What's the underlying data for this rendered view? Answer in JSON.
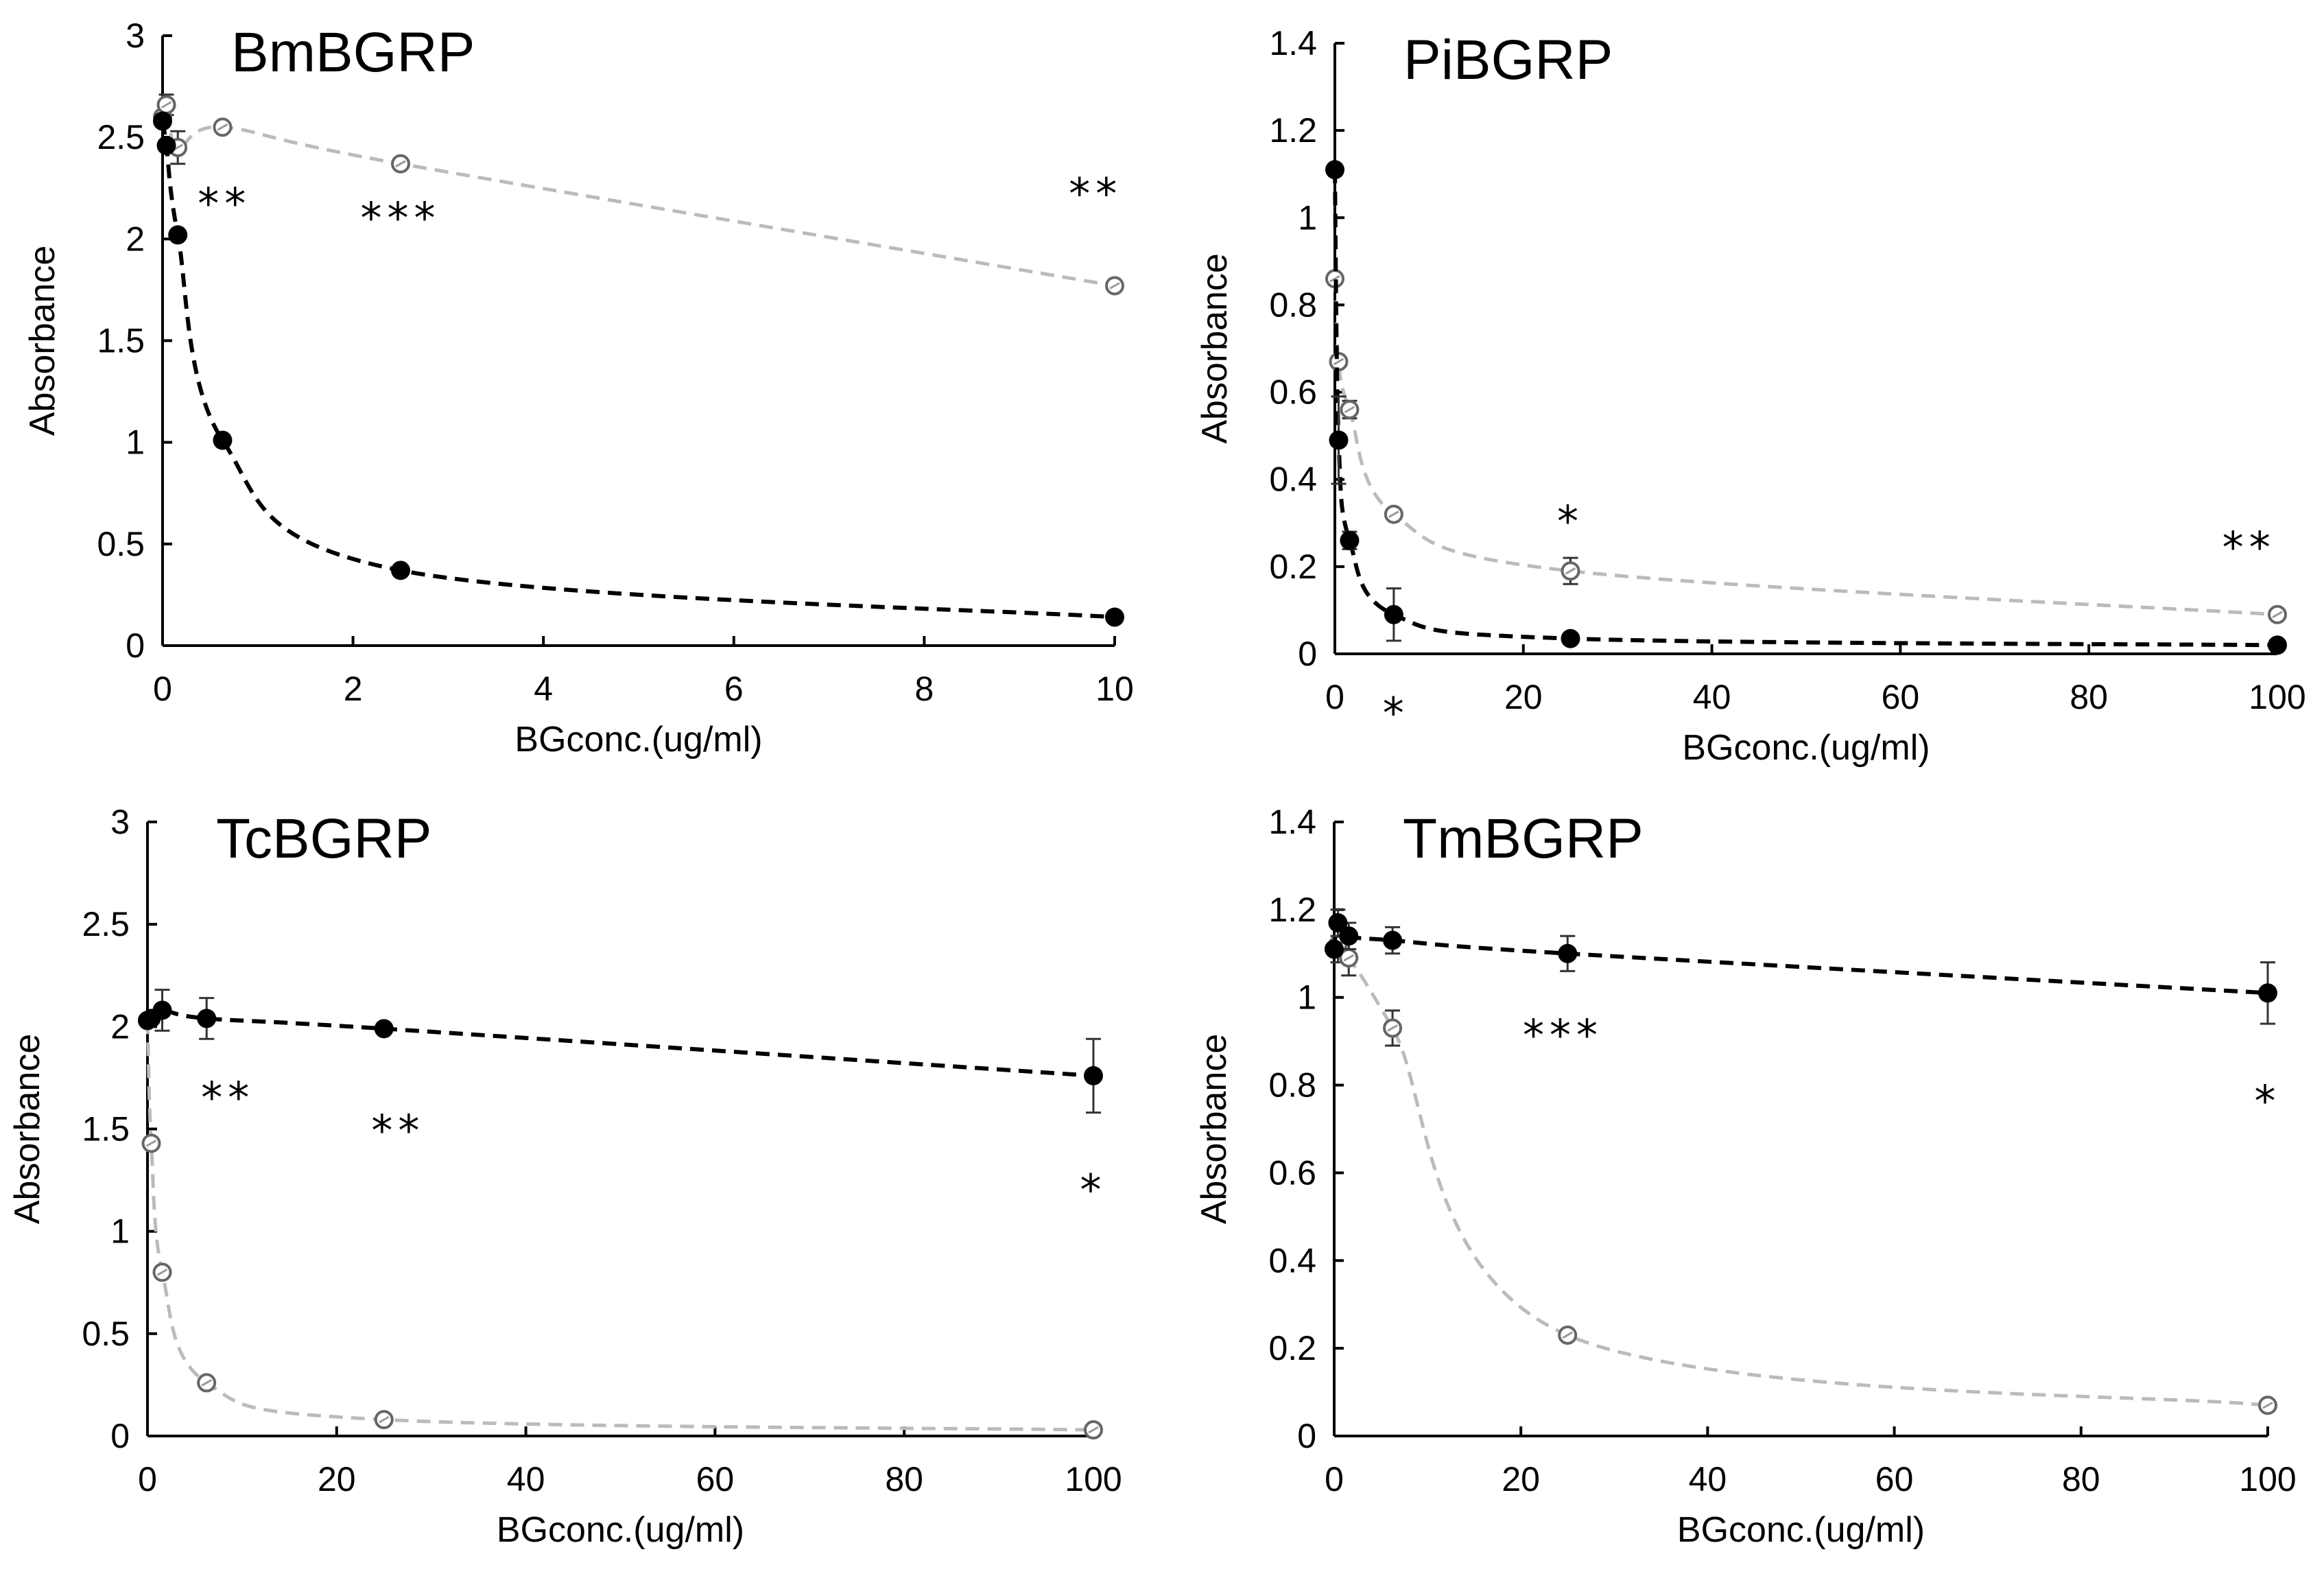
{
  "chart_data": [
    {
      "type": "scatter",
      "title": "BmBGRP",
      "xlabel": "BGconc.(ug/ml)",
      "ylabel": "Absorbance",
      "xlim": [
        0,
        10
      ],
      "ylim": [
        0,
        3
      ],
      "xticks": [
        0,
        2,
        4,
        6,
        8,
        10
      ],
      "yticks": [
        0,
        0.5,
        1,
        1.5,
        2,
        2.5,
        3
      ],
      "xtick_labels": [
        "0",
        "2",
        "4",
        "6",
        "8",
        "10"
      ],
      "ytick_labels": [
        "0",
        "0.5",
        "1",
        "1.5",
        "2",
        "2.5",
        "3"
      ],
      "grid": false,
      "legend": "none",
      "series": [
        {
          "marker": "open-circle",
          "line": "dashed",
          "color": "#bbbbbb",
          "x": [
            0,
            0.04,
            0.16,
            0.63,
            2.5,
            10
          ],
          "y": [
            2.6,
            2.66,
            2.45,
            2.55,
            2.37,
            1.77
          ],
          "err": [
            0,
            0.05,
            0.08,
            0,
            0,
            0
          ]
        },
        {
          "marker": "filled-circle",
          "line": "dashed",
          "color": "#000000",
          "x": [
            0,
            0.04,
            0.16,
            0.63,
            2.5,
            10
          ],
          "y": [
            2.58,
            2.46,
            2.02,
            1.01,
            0.37,
            0.14
          ],
          "err": [
            0,
            0,
            0,
            0,
            0,
            0
          ]
        }
      ],
      "annotations": [
        {
          "text": "**",
          "x": 0.65,
          "y": 2.1
        },
        {
          "text": "***",
          "x": 2.5,
          "y": 2.03
        },
        {
          "text": "**",
          "x": 9.8,
          "y": 2.15
        }
      ]
    },
    {
      "type": "scatter",
      "title": "PiBGRP",
      "xlabel": "BGconc.(ug/ml)",
      "ylabel": "Absorbance",
      "xlim": [
        0,
        100
      ],
      "ylim": [
        0,
        1.4
      ],
      "xticks": [
        0,
        20,
        40,
        60,
        80,
        100
      ],
      "yticks": [
        0,
        0.2,
        0.4,
        0.6,
        0.8,
        1,
        1.2,
        1.4
      ],
      "xtick_labels": [
        "0",
        "20",
        "40",
        "60",
        "80",
        "100"
      ],
      "ytick_labels": [
        "0",
        "0.2",
        "0.4",
        "0.6",
        "0.8",
        "1",
        "1.2",
        "1.4"
      ],
      "grid": false,
      "legend": "none",
      "series": [
        {
          "marker": "open-circle",
          "line": "dashed",
          "color": "#bbbbbb",
          "x": [
            0,
            0.4,
            1.56,
            6.25,
            25,
            100
          ],
          "y": [
            0.86,
            0.67,
            0.56,
            0.32,
            0.19,
            0.09
          ],
          "err": [
            0,
            0,
            0.02,
            0,
            0.03,
            0
          ]
        },
        {
          "marker": "filled-circle",
          "line": "dashed",
          "color": "#000000",
          "x": [
            0,
            0.4,
            1.56,
            6.25,
            25,
            100
          ],
          "y": [
            1.11,
            0.49,
            0.26,
            0.09,
            0.035,
            0.02
          ],
          "err": [
            0,
            0.1,
            0.02,
            0.06,
            0,
            0
          ]
        }
      ],
      "annotations": [
        {
          "text": "*",
          "x": 25,
          "y": 0.27
        },
        {
          "text": "**",
          "x": 97,
          "y": 0.21
        },
        {
          "text": "*",
          "x": 6.5,
          "y": -0.17
        }
      ]
    },
    {
      "type": "scatter",
      "title": "TcBGRP",
      "xlabel": "BGconc.(ug/ml)",
      "ylabel": "Absorbance",
      "xlim": [
        0,
        100
      ],
      "ylim": [
        0,
        3
      ],
      "xticks": [
        0,
        20,
        40,
        60,
        80,
        100
      ],
      "yticks": [
        0,
        0.5,
        1,
        1.5,
        2,
        2.5,
        3
      ],
      "xtick_labels": [
        "0",
        "20",
        "40",
        "60",
        "80",
        "100"
      ],
      "ytick_labels": [
        "0",
        "0.5",
        "1",
        "1.5",
        "2",
        "2.5",
        "3"
      ],
      "grid": false,
      "legend": "none",
      "series": [
        {
          "marker": "open-circle",
          "line": "dashed",
          "color": "#bbbbbb",
          "x": [
            0,
            0.4,
            1.56,
            6.25,
            25,
            100
          ],
          "y": [
            2.03,
            1.43,
            0.8,
            0.26,
            0.08,
            0.03
          ],
          "err": [
            0,
            0,
            0,
            0,
            0,
            0
          ]
        },
        {
          "marker": "filled-circle",
          "line": "dashed",
          "color": "#000000",
          "x": [
            0,
            0.4,
            1.56,
            6.25,
            25,
            100
          ],
          "y": [
            2.03,
            2.04,
            2.08,
            2.04,
            1.99,
            1.76
          ],
          "err": [
            0,
            0,
            0.1,
            0.1,
            0,
            0.18
          ]
        }
      ],
      "annotations": [
        {
          "text": "**",
          "x": 8.5,
          "y": 1.58
        },
        {
          "text": "**",
          "x": 26.5,
          "y": 1.42
        },
        {
          "text": "*",
          "x": 100,
          "y": 1.13
        }
      ]
    },
    {
      "type": "scatter",
      "title": "TmBGRP",
      "xlabel": "BGconc.(ug/ml)",
      "ylabel": "Absorbance",
      "xlim": [
        0,
        100
      ],
      "ylim": [
        0,
        1.4
      ],
      "xticks": [
        0,
        20,
        40,
        60,
        80,
        100
      ],
      "yticks": [
        0,
        0.2,
        0.4,
        0.6,
        0.8,
        1,
        1.2,
        1.4
      ],
      "xtick_labels": [
        "0",
        "20",
        "40",
        "60",
        "80",
        "100"
      ],
      "ytick_labels": [
        "0",
        "0.2",
        "0.4",
        "0.6",
        "0.8",
        "1",
        "1.2",
        "1.4"
      ],
      "grid": false,
      "legend": "none",
      "series": [
        {
          "marker": "open-circle",
          "line": "dashed",
          "color": "#bbbbbb",
          "x": [
            0,
            0.4,
            1.56,
            6.25,
            25,
            100
          ],
          "y": [
            1.11,
            1.12,
            1.09,
            0.93,
            0.23,
            0.07
          ],
          "err": [
            0,
            0.04,
            0.04,
            0.04,
            0,
            0
          ]
        },
        {
          "marker": "filled-circle",
          "line": "dashed",
          "color": "#000000",
          "x": [
            0,
            0.4,
            1.56,
            6.25,
            25,
            100
          ],
          "y": [
            1.11,
            1.17,
            1.14,
            1.13,
            1.1,
            1.01
          ],
          "err": [
            0,
            0.03,
            0.03,
            0.03,
            0.04,
            0.07
          ]
        }
      ],
      "annotations": [
        {
          "text": "***",
          "x": 24.5,
          "y": 0.88
        },
        {
          "text": "*",
          "x": 100,
          "y": 0.73
        }
      ]
    }
  ]
}
